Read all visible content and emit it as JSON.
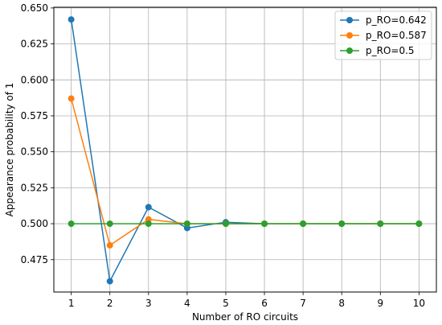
{
  "chart_data": {
    "type": "line",
    "title": "",
    "xlabel": "Number of RO circuits",
    "ylabel": "Appearance probability of 1",
    "x": [
      1,
      2,
      3,
      4,
      5,
      6,
      7,
      8,
      9,
      10
    ],
    "xlim": [
      0.55,
      10.45
    ],
    "ylim": [
      0.4525,
      0.6505
    ],
    "xticks": [
      1,
      2,
      3,
      4,
      5,
      6,
      7,
      8,
      9,
      10
    ],
    "yticks": [
      0.475,
      0.5,
      0.525,
      0.55,
      0.575,
      0.6,
      0.625,
      0.65
    ],
    "ytick_labels": [
      "0.475",
      "0.500",
      "0.525",
      "0.550",
      "0.575",
      "0.600",
      "0.625",
      "0.650"
    ],
    "grid": true,
    "legend_position": "top-right",
    "series": [
      {
        "name": "p_RO=0.642",
        "color": "#1f77b4",
        "values": [
          0.642,
          0.46,
          0.5115,
          0.497,
          0.501,
          0.5,
          0.5,
          0.5,
          0.5,
          0.5
        ]
      },
      {
        "name": "p_RO=0.587",
        "color": "#ff7f0e",
        "values": [
          0.587,
          0.485,
          0.503,
          0.5,
          0.5,
          0.5,
          0.5,
          0.5,
          0.5,
          0.5
        ]
      },
      {
        "name": "p_RO=0.5",
        "color": "#2ca02c",
        "values": [
          0.5,
          0.5,
          0.5,
          0.5,
          0.5,
          0.5,
          0.5,
          0.5,
          0.5,
          0.5
        ]
      }
    ]
  }
}
